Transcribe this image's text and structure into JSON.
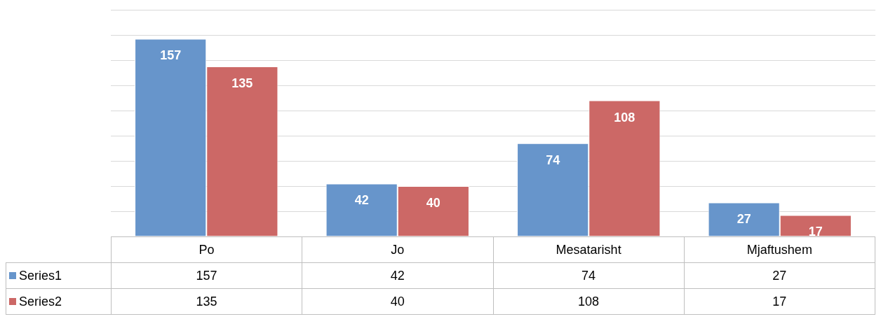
{
  "chart_data": {
    "type": "bar",
    "categories": [
      "Po",
      "Jo",
      "Mesatarisht",
      "Mjaftushem"
    ],
    "series": [
      {
        "name": "Series1",
        "color": "#6795cb",
        "values": [
          157,
          42,
          74,
          27
        ],
        "value_labels": [
          "157",
          "42",
          "74",
          "27"
        ]
      },
      {
        "name": "Series2",
        "color": "#cc6866",
        "values": [
          135,
          40,
          108,
          17
        ],
        "value_labels": [
          "135",
          "40",
          "108",
          "17"
        ]
      }
    ],
    "ylim": [
      0,
      180
    ],
    "grid": "y",
    "data_labels": true,
    "legend": "bottom"
  }
}
